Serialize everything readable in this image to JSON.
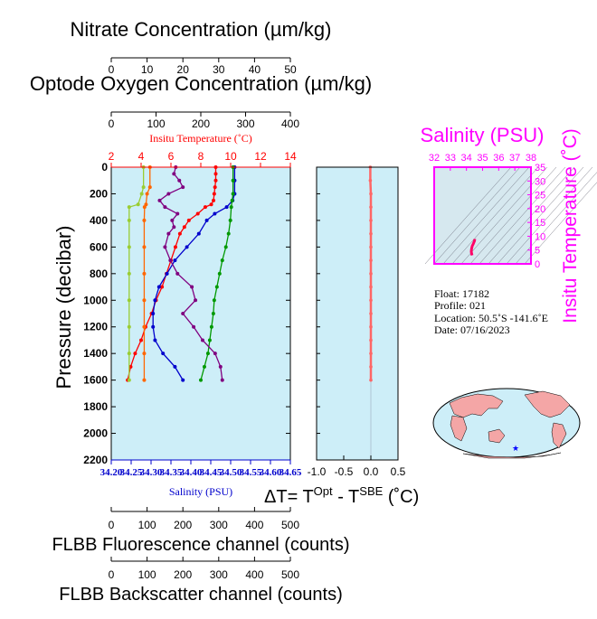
{
  "chart_data": [
    {
      "type": "line",
      "panel": "main profile",
      "y_axis": {
        "label": "Pressure (decibar)",
        "range": [
          0,
          2200
        ],
        "reversed": true,
        "ticks": [
          0,
          200,
          400,
          600,
          800,
          1000,
          1200,
          1400,
          1600,
          1800,
          2000,
          2200
        ]
      },
      "axes_top": [
        {
          "title": "Nitrate Concentration (µm/kg)",
          "range": [
            0,
            50
          ],
          "ticks": [
            0,
            10,
            20,
            30,
            40,
            50
          ],
          "color": "#000000"
        },
        {
          "title": "Optode Oxygen Concentration (µm/kg)",
          "range": [
            0,
            400
          ],
          "ticks": [
            0,
            100,
            200,
            300,
            400
          ],
          "color": "#000000"
        },
        {
          "title": "Insitu Temperature (˚C)",
          "range": [
            2,
            14
          ],
          "ticks": [
            2,
            4,
            6,
            8,
            10,
            12,
            14
          ],
          "color": "#ff0000"
        }
      ],
      "axes_bottom": [
        {
          "title": "Salinity (PSU)",
          "range": [
            34.2,
            34.65
          ],
          "ticks": [
            "34.20",
            "34.25",
            "34.30",
            "34.35",
            "34.40",
            "34.45",
            "34.50",
            "34.55",
            "34.60",
            "34.65"
          ],
          "color": "#0000cc"
        },
        {
          "title": "FLBB Fluorescence channel (counts)",
          "range": [
            0,
            500
          ],
          "ticks": [
            0,
            100,
            200,
            300,
            400,
            500
          ],
          "color": "#000000"
        },
        {
          "title": "FLBB Backscatter channel (counts)",
          "range": [
            0,
            500
          ],
          "ticks": [
            0,
            100,
            200,
            300,
            400,
            500
          ],
          "color": "#000000"
        }
      ],
      "series": [
        {
          "axis": "Insitu Temperature (˚C)",
          "color": "#ff0000",
          "points": [
            [
              9.0,
              0
            ],
            [
              9.0,
              50
            ],
            [
              9.0,
              100
            ],
            [
              8.95,
              150
            ],
            [
              8.9,
              200
            ],
            [
              8.85,
              250
            ],
            [
              8.7,
              280
            ],
            [
              8.3,
              300
            ],
            [
              7.8,
              350
            ],
            [
              7.2,
              400
            ],
            [
              6.9,
              450
            ],
            [
              6.6,
              500
            ],
            [
              6.3,
              600
            ],
            [
              6.0,
              700
            ],
            [
              5.7,
              800
            ],
            [
              5.4,
              900
            ],
            [
              5.0,
              1000
            ],
            [
              4.7,
              1100
            ],
            [
              4.3,
              1200
            ],
            [
              4.0,
              1300
            ],
            [
              3.6,
              1400
            ],
            [
              3.3,
              1500
            ],
            [
              3.1,
              1600
            ]
          ]
        },
        {
          "axis": "Salinity (PSU)",
          "color": "#0000cc",
          "points": [
            [
              34.51,
              0
            ],
            [
              34.51,
              100
            ],
            [
              34.51,
              200
            ],
            [
              34.505,
              250
            ],
            [
              34.49,
              300
            ],
            [
              34.46,
              350
            ],
            [
              34.44,
              400
            ],
            [
              34.42,
              500
            ],
            [
              34.39,
              600
            ],
            [
              34.36,
              700
            ],
            [
              34.34,
              800
            ],
            [
              34.32,
              900
            ],
            [
              34.31,
              1000
            ],
            [
              34.305,
              1100
            ],
            [
              34.305,
              1200
            ],
            [
              34.31,
              1300
            ],
            [
              34.33,
              1400
            ],
            [
              34.36,
              1500
            ],
            [
              34.38,
              1600
            ]
          ]
        },
        {
          "axis": "Optode Oxygen Concentration (µm/kg)",
          "color": "#009900",
          "points": [
            [
              272,
              0
            ],
            [
              272,
              100
            ],
            [
              272,
              200
            ],
            [
              270,
              250
            ],
            [
              268,
              300
            ],
            [
              266,
              400
            ],
            [
              262,
              500
            ],
            [
              256,
              600
            ],
            [
              248,
              700
            ],
            [
              242,
              800
            ],
            [
              236,
              900
            ],
            [
              230,
              1000
            ],
            [
              228,
              1100
            ],
            [
              224,
              1200
            ],
            [
              220,
              1300
            ],
            [
              216,
              1400
            ],
            [
              208,
              1500
            ],
            [
              200,
              1600
            ]
          ]
        },
        {
          "axis": "Nitrate Concentration (µm/kg)",
          "color": "#9acd32",
          "points": [
            [
              9,
              0
            ],
            [
              9,
              150
            ],
            [
              8.5,
              200
            ],
            [
              7.5,
              280
            ],
            [
              5,
              300
            ],
            [
              5,
              400
            ],
            [
              5,
              600
            ],
            [
              5,
              800
            ],
            [
              5,
              1000
            ],
            [
              5,
              1200
            ],
            [
              5,
              1400
            ],
            [
              5,
              1600
            ]
          ]
        },
        {
          "axis": "FLBB Fluorescence channel (counts)",
          "color": "#ff6600",
          "points": [
            [
              108,
              0
            ],
            [
              108,
              150
            ],
            [
              100,
              200
            ],
            [
              97,
              280
            ],
            [
              93,
              300
            ],
            [
              92,
              400
            ],
            [
              92,
              600
            ],
            [
              92,
              800
            ],
            [
              92,
              1000
            ],
            [
              92,
              1200
            ],
            [
              92,
              1400
            ],
            [
              92,
              1600
            ]
          ]
        },
        {
          "axis": "FLBB Backscatter channel (counts)",
          "color": "#800080",
          "points": [
            [
              180,
              0
            ],
            [
              175,
              50
            ],
            [
              190,
              100
            ],
            [
              200,
              150
            ],
            [
              160,
              200
            ],
            [
              135,
              250
            ],
            [
              150,
              300
            ],
            [
              185,
              350
            ],
            [
              170,
              400
            ],
            [
              175,
              450
            ],
            [
              160,
              500
            ],
            [
              150,
              600
            ],
            [
              165,
              700
            ],
            [
              185,
              800
            ],
            [
              225,
              900
            ],
            [
              235,
              1000
            ],
            [
              200,
              1100
            ],
            [
              230,
              1200
            ],
            [
              255,
              1300
            ],
            [
              290,
              1400
            ],
            [
              305,
              1500
            ],
            [
              310,
              1600
            ]
          ]
        }
      ]
    },
    {
      "type": "line",
      "panel": "temperature difference",
      "xlabel_main": "ΔT= T",
      "xlabel_sup1": "Opt",
      "xlabel_mid": " - T",
      "xlabel_sup2": "SBE",
      "xlabel_unit": " (˚C)",
      "x_range": [
        -1.0,
        0.5
      ],
      "x_ticks": [
        "-1.0",
        "-0.5",
        "0.0",
        "0.5"
      ],
      "y_range": [
        0,
        2200
      ],
      "series": [
        {
          "color": "#ff6666",
          "points": [
            [
              -0.01,
              0
            ],
            [
              -0.01,
              100
            ],
            [
              0.0,
              200
            ],
            [
              0.0,
              300
            ],
            [
              0.0,
              400
            ],
            [
              0.0,
              500
            ],
            [
              0.0,
              600
            ],
            [
              0.0,
              700
            ],
            [
              0.0,
              800
            ],
            [
              0.0,
              900
            ],
            [
              0.0,
              1000
            ],
            [
              0.0,
              1100
            ],
            [
              0.0,
              1200
            ],
            [
              0.0,
              1300
            ],
            [
              0.0,
              1400
            ],
            [
              0.0,
              1500
            ],
            [
              0.0,
              1600
            ]
          ]
        }
      ]
    },
    {
      "type": "scatter",
      "panel": "T-S diagram",
      "title": "Salinity (PSU)",
      "ylabel": "Insitu Temperature (˚C)",
      "x_range": [
        32,
        38
      ],
      "x_ticks": [
        "32",
        "33",
        "34",
        "35",
        "36",
        "37",
        "38"
      ],
      "y_range": [
        0,
        35
      ],
      "y_ticks": [
        "0",
        "5",
        "10",
        "15",
        "20",
        "25",
        "30",
        "35"
      ],
      "series": [
        {
          "color": "#ff0066",
          "points": [
            [
              34.35,
              3.1
            ],
            [
              34.33,
              3.5
            ],
            [
              34.31,
              4.0
            ],
            [
              34.3,
              4.5
            ],
            [
              34.32,
              5.5
            ],
            [
              34.36,
              6.5
            ],
            [
              34.42,
              7.2
            ],
            [
              34.46,
              7.8
            ],
            [
              34.5,
              8.3
            ],
            [
              34.51,
              8.9
            ],
            [
              34.51,
              9.0
            ]
          ]
        }
      ]
    }
  ],
  "float_info": {
    "float": "Float:  17182",
    "profile": "Profile:  021",
    "location": "Location:  50.5˚S  -141.6˚E",
    "date": "Date:  07/16/2023"
  },
  "map": {
    "marker_symbol": "★",
    "marker_color": "#0000ff"
  },
  "colors": {
    "panel_bg": "#cdeef8",
    "ts_bg": "#d6e8ef",
    "ts_frame": "#ff00ff",
    "temperature": "#ff0000",
    "salinity": "#0000cc",
    "oxygen": "#009900",
    "nitrate": "#9acd32",
    "fluorescence": "#ff6600",
    "backscatter": "#800080"
  }
}
